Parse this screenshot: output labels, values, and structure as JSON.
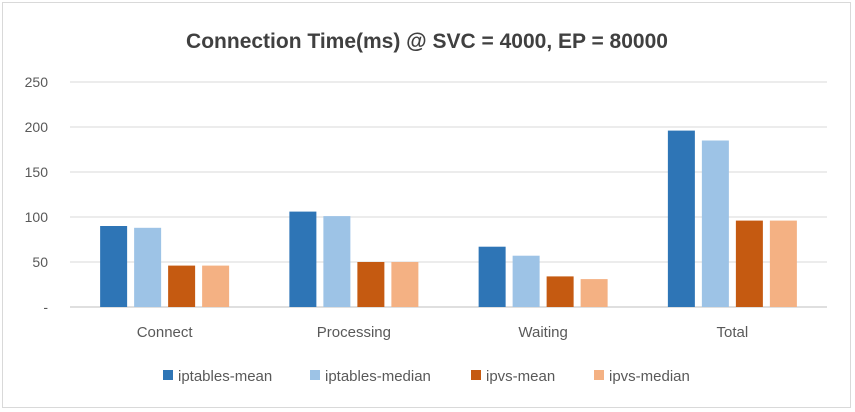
{
  "chart_data": {
    "type": "bar",
    "title": "Connection Time(ms) @ SVC = 4000, EP = 80000",
    "categories": [
      "Connect",
      "Processing",
      "Waiting",
      "Total"
    ],
    "series": [
      {
        "name": "iptables-mean",
        "color": "#2e75b6",
        "values": [
          90,
          106,
          67,
          196
        ]
      },
      {
        "name": "iptables-median",
        "color": "#9dc3e6",
        "values": [
          88,
          101,
          57,
          185
        ]
      },
      {
        "name": "ipvs-mean",
        "color": "#c55a11",
        "values": [
          46,
          50,
          34,
          96
        ]
      },
      {
        "name": "ipvs-median",
        "color": "#f4b183",
        "values": [
          46,
          50,
          31,
          96
        ]
      }
    ],
    "yticks": [
      "-",
      "50",
      "100",
      "150",
      "200",
      "250"
    ],
    "ylim": [
      0,
      250
    ],
    "grid": true,
    "legend": "bottom"
  }
}
